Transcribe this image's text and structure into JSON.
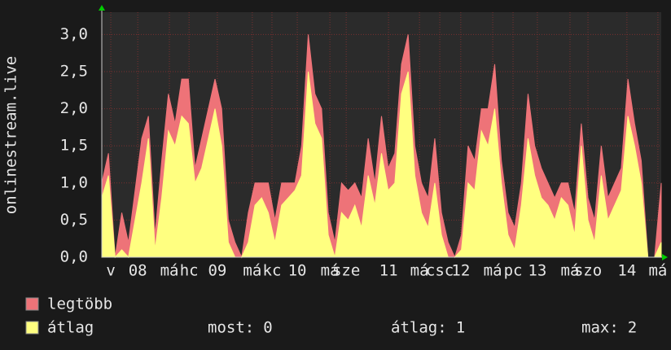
{
  "chart_data": {
    "type": "area",
    "ylabel": "onlinestream.live",
    "x": [
      0,
      2,
      4,
      6,
      8,
      10,
      12,
      14,
      16,
      18,
      20,
      22,
      24,
      26,
      28,
      30,
      32,
      34,
      36,
      38,
      40,
      42,
      44,
      46,
      48,
      50,
      52,
      54,
      56,
      58,
      60,
      62,
      64,
      66,
      68,
      70,
      72,
      74,
      76,
      78,
      80,
      82,
      84,
      86,
      88,
      90,
      92,
      94,
      96,
      98,
      100,
      102,
      104,
      106,
      108,
      110,
      112,
      114,
      116,
      118,
      120,
      122,
      124,
      126,
      128,
      130,
      132,
      134,
      136,
      138,
      140,
      142,
      144,
      146,
      148,
      150,
      152,
      154,
      156,
      158,
      160,
      162,
      164,
      166,
      168
    ],
    "series": [
      {
        "name": "legtöbb",
        "color": "#ee7378",
        "values": [
          1.0,
          1.4,
          0,
          0.6,
          0.2,
          0.9,
          1.6,
          1.9,
          0.3,
          1.3,
          2.2,
          1.8,
          2.4,
          2.4,
          1.2,
          1.6,
          2.0,
          2.4,
          2.0,
          0.5,
          0.2,
          0,
          0.6,
          1.0,
          1.0,
          1.0,
          0.5,
          1.0,
          1.0,
          1.0,
          1.5,
          3.0,
          2.2,
          2.0,
          0.6,
          0.2,
          1.0,
          0.9,
          1.0,
          0.8,
          1.6,
          1.0,
          1.9,
          1.2,
          1.4,
          2.6,
          3.0,
          1.5,
          1.0,
          0.8,
          1.6,
          0.6,
          0.2,
          0,
          0.3,
          1.5,
          1.3,
          2.0,
          2.0,
          2.6,
          1.3,
          0.6,
          0.4,
          1.0,
          2.2,
          1.5,
          1.2,
          1.0,
          0.8,
          1.0,
          1.0,
          0.6,
          1.8,
          0.8,
          0.5,
          1.5,
          0.8,
          1.0,
          1.2,
          2.4,
          1.8,
          1.3,
          0,
          0,
          1.0
        ]
      },
      {
        "name": "átlag",
        "color": "#ffff80",
        "values": [
          0.8,
          1.1,
          0,
          0.1,
          0,
          0.5,
          1.0,
          1.6,
          0.1,
          0.8,
          1.7,
          1.5,
          1.9,
          1.8,
          1.0,
          1.2,
          1.6,
          2.0,
          1.5,
          0.2,
          0,
          0,
          0.2,
          0.7,
          0.8,
          0.6,
          0.2,
          0.7,
          0.8,
          0.9,
          1.1,
          2.5,
          1.8,
          1.6,
          0.3,
          0,
          0.6,
          0.5,
          0.7,
          0.4,
          1.1,
          0.7,
          1.4,
          0.9,
          1.0,
          2.2,
          2.5,
          1.1,
          0.6,
          0.4,
          1.0,
          0.3,
          0,
          0,
          0.1,
          1.0,
          0.9,
          1.7,
          1.5,
          2.0,
          1.0,
          0.3,
          0.1,
          0.7,
          1.6,
          1.1,
          0.8,
          0.7,
          0.5,
          0.8,
          0.7,
          0.3,
          1.5,
          0.5,
          0.2,
          1.1,
          0.5,
          0.7,
          0.9,
          1.9,
          1.5,
          1.0,
          0,
          0,
          0.2
        ]
      }
    ],
    "xlim": [
      0,
      168
    ],
    "xticks": [
      {
        "value": 2.7,
        "label": "v"
      },
      {
        "value": 10.8,
        "label": "08"
      },
      {
        "value": 20.3,
        "label": "má"
      },
      {
        "value": 26.2,
        "label": "hc"
      },
      {
        "value": 34.7,
        "label": "09"
      },
      {
        "value": 45.2,
        "label": "má"
      },
      {
        "value": 51.1,
        "label": "kc"
      },
      {
        "value": 58.7,
        "label": "10"
      },
      {
        "value": 68.5,
        "label": "má"
      },
      {
        "value": 73.4,
        "label": "sze"
      },
      {
        "value": 86.1,
        "label": "11"
      },
      {
        "value": 95.4,
        "label": "má"
      },
      {
        "value": 101.5,
        "label": "csc"
      },
      {
        "value": 107.8,
        "label": "12"
      },
      {
        "value": 117.4,
        "label": "má"
      },
      {
        "value": 123.5,
        "label": "pc"
      },
      {
        "value": 130.8,
        "label": "13"
      },
      {
        "value": 140.6,
        "label": "má"
      },
      {
        "value": 146,
        "label": "szo"
      },
      {
        "value": 157.7,
        "label": "14"
      },
      {
        "value": 167,
        "label": "má"
      }
    ],
    "ylim": [
      0,
      3.3
    ],
    "yticks": [
      {
        "value": 0,
        "label": "0,0"
      },
      {
        "value": 0.5,
        "label": "0,5"
      },
      {
        "value": 1,
        "label": "1,0"
      },
      {
        "value": 1.5,
        "label": "1,5"
      },
      {
        "value": 2,
        "label": "2,0"
      },
      {
        "value": 2.5,
        "label": "2,5"
      },
      {
        "value": 3,
        "label": "3,0"
      }
    ],
    "grid": true,
    "stats": [
      {
        "label": "most:",
        "value": 0
      },
      {
        "label": "átlag:",
        "value": 1
      },
      {
        "label": "max:",
        "value": 2
      }
    ]
  }
}
